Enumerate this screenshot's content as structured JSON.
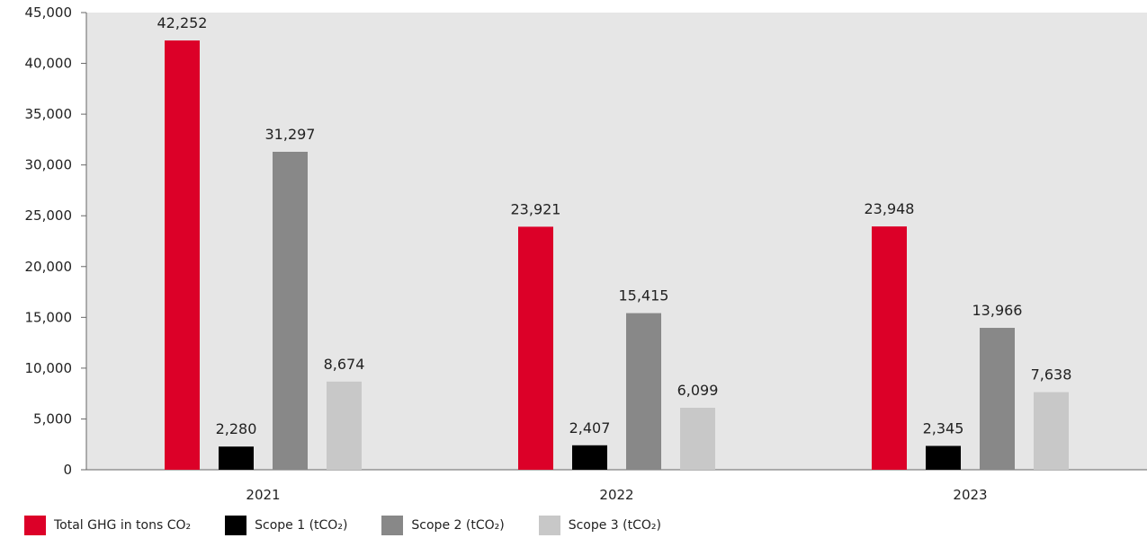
{
  "chart_data": {
    "type": "bar",
    "categories": [
      "2021",
      "2022",
      "2023"
    ],
    "series": [
      {
        "name": "Total GHG in tons CO₂",
        "color": "#dc0028",
        "values": [
          42252,
          23921,
          23948
        ],
        "labels": [
          "42,252",
          "23,921",
          "23,948"
        ]
      },
      {
        "name": "Scope 1 (tCO₂)",
        "color": "#000000",
        "values": [
          2280,
          2407,
          2345
        ],
        "labels": [
          "2,280",
          "2,407",
          "2,345"
        ]
      },
      {
        "name": "Scope 2 (tCO₂)",
        "color": "#888888",
        "values": [
          31297,
          15415,
          13966
        ],
        "labels": [
          "31,297",
          "15,415",
          "13,966"
        ]
      },
      {
        "name": "Scope 3 (tCO₂)",
        "color": "#c8c8c8",
        "values": [
          8674,
          6099,
          7638
        ],
        "labels": [
          "8,674",
          "6,099",
          "7,638"
        ]
      }
    ],
    "ylim": [
      0,
      45000
    ],
    "yticks": [
      "0",
      "5,000",
      "10,000",
      "15,000",
      "20,000",
      "25,000",
      "30,000",
      "35,000",
      "40,000",
      "45,000"
    ],
    "plot_background": "#e6e6e6",
    "grid": false,
    "legend_position": "bottom-left"
  }
}
